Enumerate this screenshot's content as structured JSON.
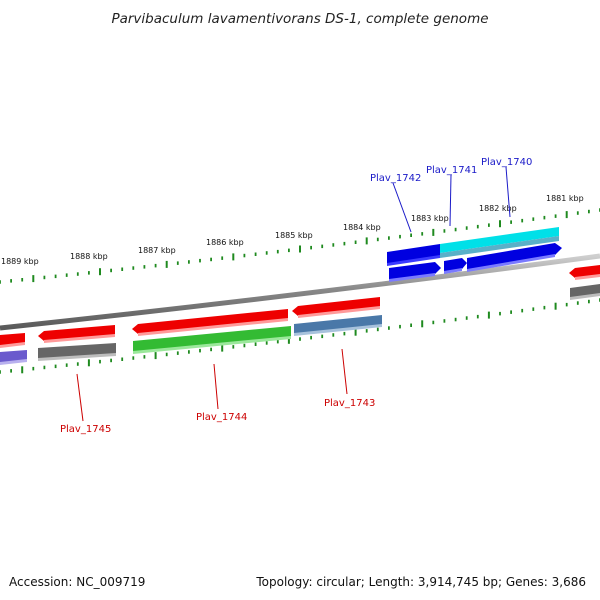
{
  "title": "Parvibaculum lavamentivorans DS-1, complete genome",
  "footer": {
    "accession": "Accession: NC_009719",
    "summary": "Topology: circular; Length: 3,914,745 bp; Genes: 3,686"
  },
  "colors": {
    "backbone": "#8a8a8a",
    "tick": "#1f8a1f",
    "red_gene": "#ee0000",
    "gray_gene": "#666666",
    "purple_gene": "#6a5acd",
    "green_gene": "#33bb33",
    "steel_gene": "#4a78a8",
    "blue_gene": "#0000e0",
    "cyan_gene": "#00e0e8",
    "label_top": "#1a1ac8",
    "label_bottom": "#cc0000"
  },
  "top_ruler": {
    "labels": [
      "1881 kbp",
      "1882 kbp",
      "1883 kbp",
      "1884 kbp",
      "1885 kbp",
      "1886 kbp",
      "1887 kbp",
      "1888 kbp",
      "1889 kbp"
    ]
  },
  "gene_labels_top": [
    "Plav_1742",
    "Plav_1741",
    "Plav_1740"
  ],
  "gene_labels_bottom": [
    "Plav_1745",
    "Plav_1744",
    "Plav_1743"
  ]
}
